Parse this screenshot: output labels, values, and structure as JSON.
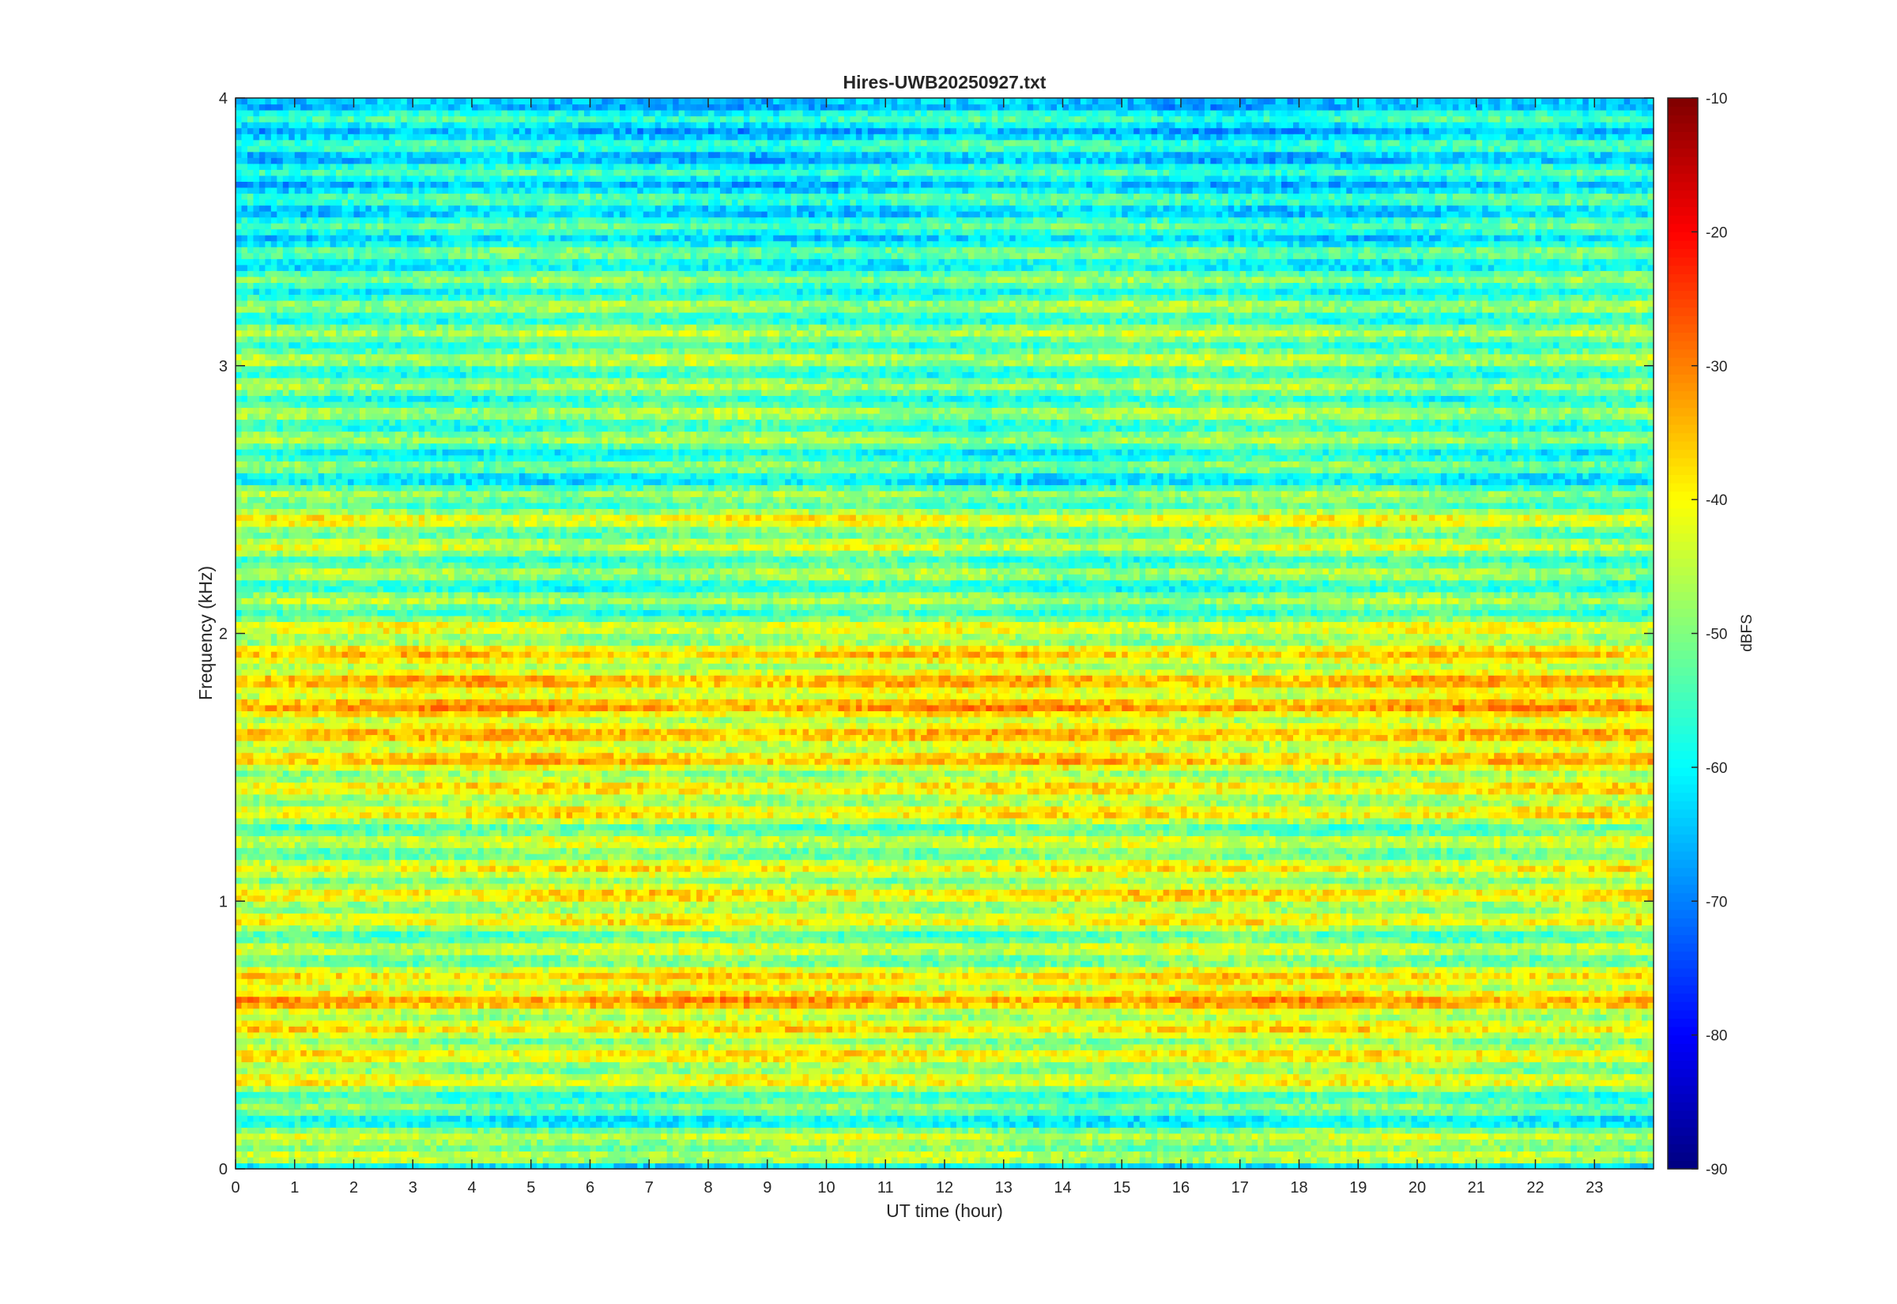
{
  "chart_data": {
    "type": "heatmap",
    "title": "Hires-UWB20250927.txt",
    "xlabel": "UT time (hour)",
    "ylabel": "Frequency (kHz)",
    "xlim": [
      0,
      24
    ],
    "ylim": [
      0,
      4
    ],
    "x_ticks": [
      "0",
      "1",
      "2",
      "3",
      "4",
      "5",
      "6",
      "7",
      "8",
      "9",
      "10",
      "11",
      "12",
      "13",
      "14",
      "15",
      "16",
      "17",
      "18",
      "19",
      "20",
      "21",
      "22",
      "23"
    ],
    "y_ticks": [
      "0",
      "1",
      "2",
      "3",
      "4"
    ],
    "colorbar": {
      "label": "dBFS",
      "range": [
        -90,
        -10
      ],
      "ticks": [
        "-10",
        "-20",
        "-30",
        "-40",
        "-50",
        "-60",
        "-70",
        "-80",
        "-90"
      ],
      "colormap": "jet"
    },
    "frequency_profile_khz_dbfs": [
      [
        0.0,
        -72
      ],
      [
        0.05,
        -42
      ],
      [
        0.1,
        -48
      ],
      [
        0.2,
        -58
      ],
      [
        0.25,
        -53
      ],
      [
        0.35,
        -44
      ],
      [
        0.45,
        -44
      ],
      [
        0.55,
        -43
      ],
      [
        0.65,
        -36
      ],
      [
        0.75,
        -45
      ],
      [
        0.85,
        -50
      ],
      [
        0.95,
        -43
      ],
      [
        1.05,
        -43
      ],
      [
        1.15,
        -45
      ],
      [
        1.25,
        -50
      ],
      [
        1.35,
        -42
      ],
      [
        1.45,
        -44
      ],
      [
        1.55,
        -39
      ],
      [
        1.65,
        -40
      ],
      [
        1.75,
        -37
      ],
      [
        1.85,
        -40
      ],
      [
        1.95,
        -42
      ],
      [
        2.1,
        -52
      ],
      [
        2.2,
        -53
      ],
      [
        2.35,
        -48
      ],
      [
        2.45,
        -45
      ],
      [
        2.55,
        -57
      ],
      [
        2.65,
        -55
      ],
      [
        2.75,
        -52
      ],
      [
        2.95,
        -52
      ],
      [
        3.05,
        -50
      ],
      [
        3.25,
        -53
      ],
      [
        3.5,
        -58
      ],
      [
        3.7,
        -60
      ],
      [
        3.9,
        -61
      ]
    ]
  }
}
